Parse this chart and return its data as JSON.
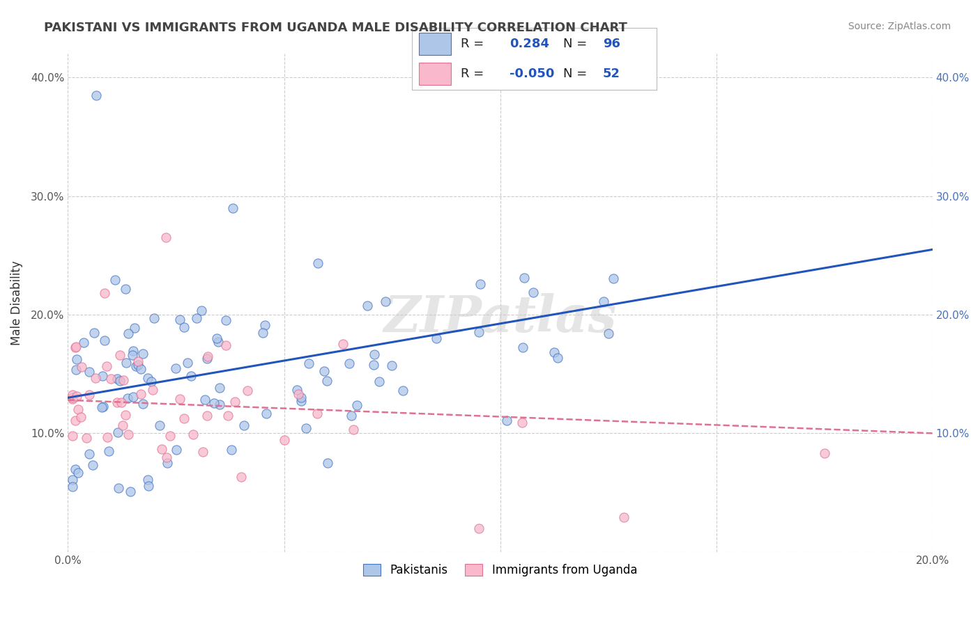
{
  "title": "PAKISTANI VS IMMIGRANTS FROM UGANDA MALE DISABILITY CORRELATION CHART",
  "source": "Source: ZipAtlas.com",
  "ylabel": "Male Disability",
  "xlim": [
    0.0,
    0.2
  ],
  "ylim": [
    0.0,
    0.42
  ],
  "x_ticks": [
    0.0,
    0.05,
    0.1,
    0.15,
    0.2
  ],
  "y_ticks": [
    0.0,
    0.1,
    0.2,
    0.3,
    0.4
  ],
  "pakistani_color": "#aec6e8",
  "pakistani_edge_color": "#4472c4",
  "uganda_color": "#f9b8cb",
  "uganda_edge_color": "#e07090",
  "trend_blue": "#2255bb",
  "trend_pink": "#e07090",
  "legend_R1": "0.284",
  "legend_N1": "96",
  "legend_R2": "-0.050",
  "legend_N2": "52",
  "watermark": "ZIPatlas",
  "grid_color": "#cccccc",
  "pak_trend_x0": 0.0,
  "pak_trend_y0": 0.13,
  "pak_trend_x1": 0.2,
  "pak_trend_y1": 0.255,
  "uga_trend_x0": 0.0,
  "uga_trend_y0": 0.128,
  "uga_trend_x1": 0.2,
  "uga_trend_y1": 0.1
}
